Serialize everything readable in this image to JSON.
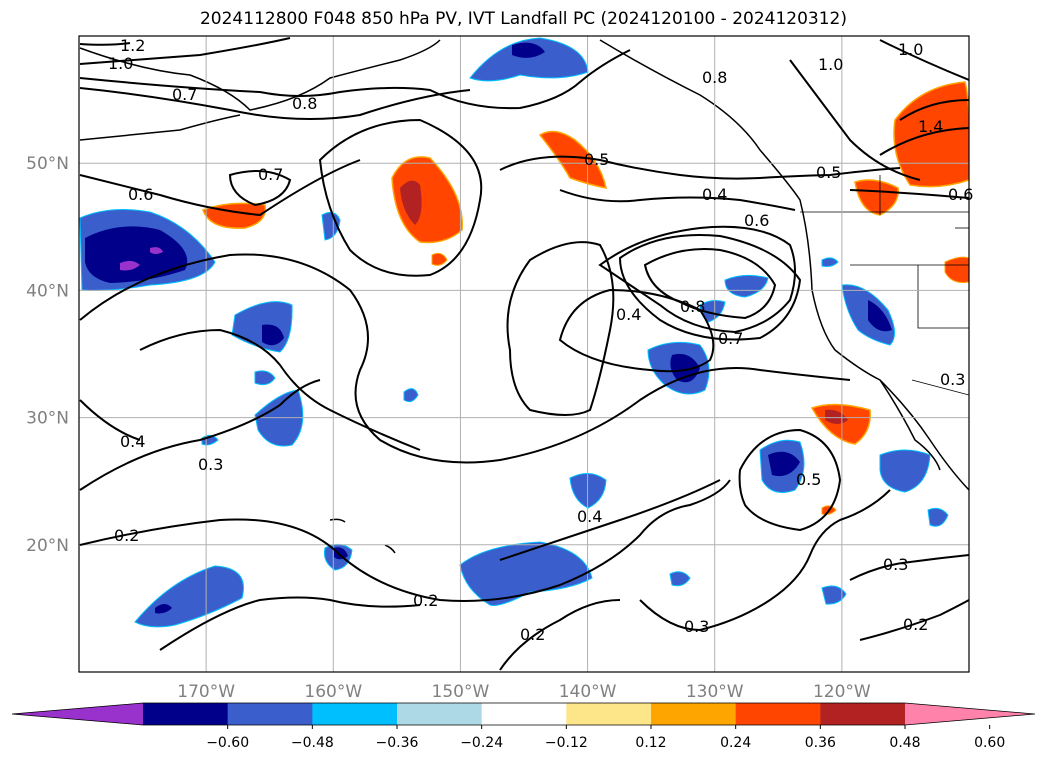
{
  "title": "2024112800 F048 850 hPa PV, IVT Landfall PC (2024120100 - 2024120312)",
  "map": {
    "projection": "PlateCarree",
    "lon_range": [
      -180,
      -110
    ],
    "lat_range": [
      10,
      60
    ],
    "gridlines": true,
    "lat_ticks": [
      {
        "lat": 50,
        "label": "50°N"
      },
      {
        "lat": 40,
        "label": "40°N"
      },
      {
        "lat": 30,
        "label": "30°N"
      },
      {
        "lat": 20,
        "label": "20°N"
      }
    ],
    "lon_ticks": [
      {
        "lon": -170,
        "label": "170°W"
      },
      {
        "lon": -160,
        "label": "160°W"
      },
      {
        "lon": -150,
        "label": "150°W"
      },
      {
        "lon": -140,
        "label": "140°W"
      },
      {
        "lon": -130,
        "label": "130°W"
      },
      {
        "lon": -120,
        "label": "120°W"
      }
    ],
    "contour_labels": [
      "1.2",
      "1.0",
      "0.7",
      "0.8",
      "0.8",
      "0.6",
      "0.7",
      "0.5",
      "0.4",
      "0.6",
      "0.8",
      "0.7",
      "0.4",
      "0.5",
      "0.5",
      "0.4",
      "0.4",
      "0.3",
      "0.2",
      "0.2",
      "0.2",
      "0.3",
      "0.3",
      "0.2",
      "1.0",
      "1.4",
      "1.0",
      "0.6",
      "0.3"
    ]
  },
  "colorbar": {
    "colors": [
      "#9932cc",
      "#00008b",
      "#3a5fcd",
      "#00bfff",
      "#add8e6",
      "#ffffff",
      "#fde68a",
      "#ffa500",
      "#ff4500",
      "#b22222",
      "#ff82ab"
    ],
    "tick_labels": [
      "−0.60",
      "−0.48",
      "−0.36",
      "−0.24",
      "−0.12",
      "0.12",
      "0.24",
      "0.36",
      "0.48",
      "0.60"
    ],
    "extend": "both"
  }
}
